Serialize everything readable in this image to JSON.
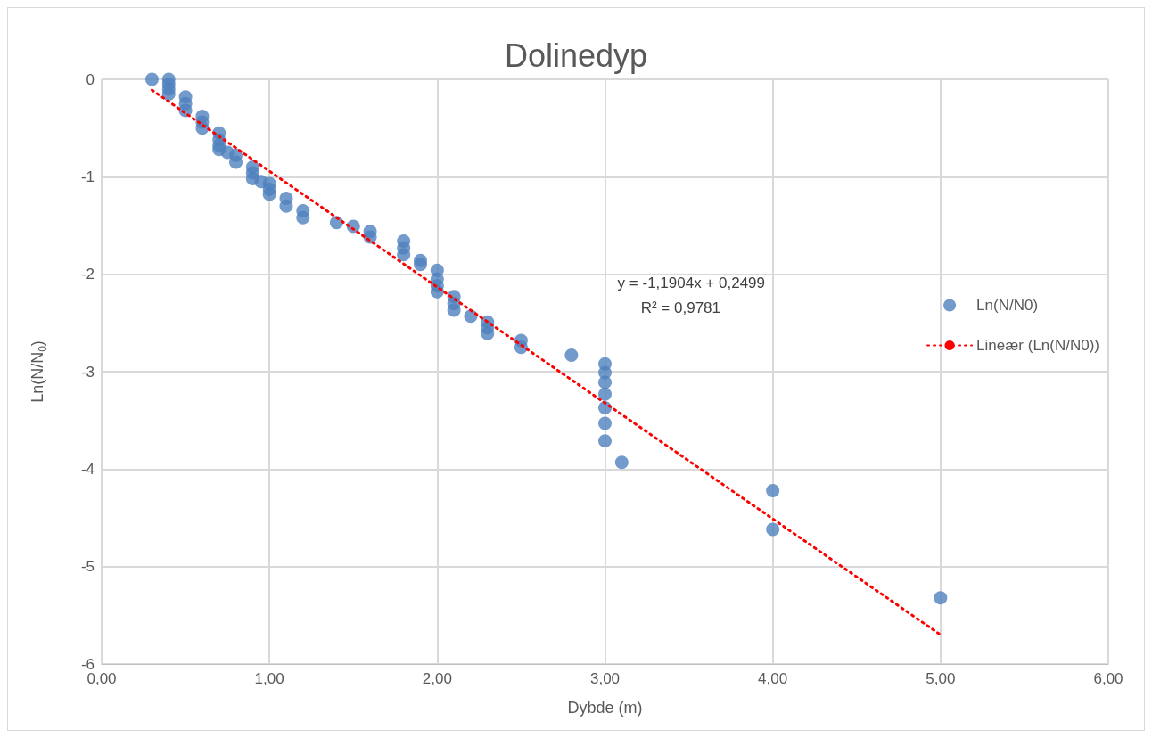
{
  "chart_data": {
    "type": "scatter",
    "title": "Dolinedyp",
    "xlabel": "Dybde (m)",
    "ylabel": "Ln(N/N$_{0}$)",
    "series": [
      {
        "name": "Ln(N/N0)",
        "color": "#4f81bd",
        "marker": "circle",
        "x": [
          0.3,
          0.4,
          0.4,
          0.4,
          0.4,
          0.5,
          0.5,
          0.5,
          0.6,
          0.6,
          0.6,
          0.7,
          0.7,
          0.7,
          0.7,
          0.75,
          0.8,
          0.8,
          0.9,
          0.9,
          0.9,
          0.95,
          1.0,
          1.0,
          1.0,
          1.1,
          1.1,
          1.2,
          1.2,
          1.4,
          1.5,
          1.6,
          1.6,
          1.8,
          1.8,
          1.8,
          1.9,
          1.9,
          2.0,
          2.0,
          2.0,
          2.0,
          2.1,
          2.1,
          2.1,
          2.2,
          2.3,
          2.3,
          2.3,
          2.5,
          2.5,
          2.8,
          3.0,
          3.0,
          3.0,
          3.0,
          3.0,
          3.0,
          3.0,
          3.1,
          4.0,
          4.0,
          5.0
        ],
        "values": [
          0,
          0,
          -0.05,
          -0.1,
          -0.15,
          -0.18,
          -0.25,
          -0.32,
          -0.38,
          -0.44,
          -0.5,
          -0.55,
          -0.62,
          -0.68,
          -0.72,
          -0.75,
          -0.78,
          -0.85,
          -0.9,
          -0.96,
          -1.02,
          -1.05,
          -1.07,
          -1.13,
          -1.18,
          -1.22,
          -1.3,
          -1.35,
          -1.42,
          -1.47,
          -1.51,
          -1.56,
          -1.62,
          -1.66,
          -1.73,
          -1.8,
          -1.86,
          -1.9,
          -1.96,
          -2.05,
          -2.12,
          -2.18,
          -2.23,
          -2.3,
          -2.37,
          -2.43,
          -2.49,
          -2.55,
          -2.61,
          -2.68,
          -2.75,
          -2.83,
          -2.92,
          -3.01,
          -3.11,
          -3.23,
          -3.37,
          -3.53,
          -3.71,
          -3.93,
          -4.22,
          -4.62,
          -5.32
        ]
      },
      {
        "name": "Lineær (Ln(N/N0))",
        "type": "line",
        "color": "#ff0000",
        "line_style": "dotted",
        "marker": "none",
        "x": [
          0.3,
          5.0
        ],
        "values": [
          -0.11,
          -5.7
        ]
      }
    ],
    "annotations": [
      "y = -1,1904x + 0,2499",
      "R² = 0,9781"
    ],
    "xlim": [
      0,
      6
    ],
    "xticks": [
      {
        "value": 0,
        "label": "0,00"
      },
      {
        "value": 1,
        "label": "1,00"
      },
      {
        "value": 2,
        "label": "2,00"
      },
      {
        "value": 3,
        "label": "3,00"
      },
      {
        "value": 4,
        "label": "4,00"
      },
      {
        "value": 5,
        "label": "5,00"
      },
      {
        "value": 6,
        "label": "6,00"
      }
    ],
    "ylim": [
      -6,
      0
    ],
    "yticks": [
      -6,
      -5,
      -4,
      -3,
      -2,
      -1,
      0
    ],
    "grid": true,
    "legend": "right"
  }
}
